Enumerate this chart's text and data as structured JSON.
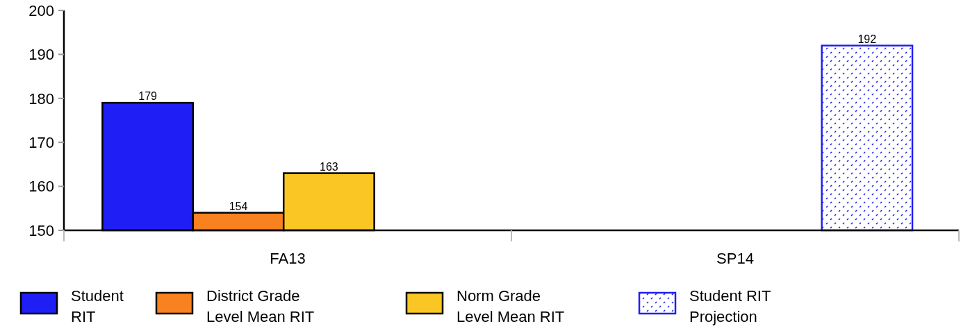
{
  "chart_data": {
    "type": "bar",
    "categories": [
      "FA13",
      "SP14"
    ],
    "series": [
      {
        "name": "Student RIT",
        "color": "#1f1ff5",
        "values": [
          179,
          null
        ]
      },
      {
        "name": "District Grade Level Mean RIT",
        "color": "#f7821f",
        "values": [
          154,
          null
        ]
      },
      {
        "name": "Norm Grade Level Mean RIT",
        "color": "#f9c623",
        "values": [
          163,
          null
        ]
      },
      {
        "name": "Student RIT Projection",
        "color": "#1f1ff5",
        "values": [
          null,
          192
        ],
        "line_style": "dotted"
      }
    ],
    "ylim": [
      150,
      200
    ],
    "yticks": [
      150,
      160,
      170,
      180,
      190,
      200
    ],
    "data_labels": true,
    "legend": "bottom",
    "grid": false
  }
}
